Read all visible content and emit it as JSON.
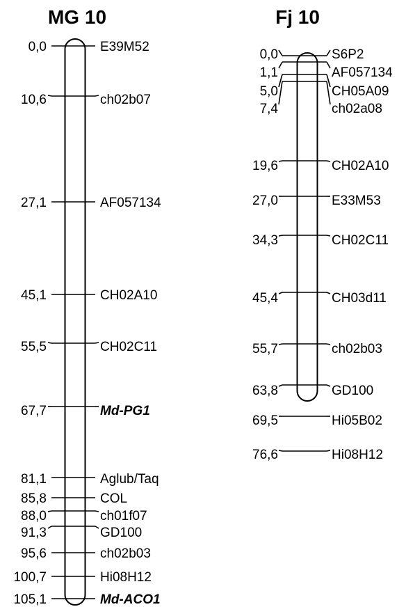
{
  "maps": [
    {
      "id": "mg10",
      "title": "MG 10",
      "markers": [
        {
          "pos": "0,0",
          "name": "E39M52"
        },
        {
          "pos": "10,6",
          "name": "ch02b07"
        },
        {
          "pos": "27,1",
          "name": "AF057134"
        },
        {
          "pos": "45,1",
          "name": "CH02A10"
        },
        {
          "pos": "55,5",
          "name": "CH02C11"
        },
        {
          "pos": "67,7",
          "name": "Md-PG1",
          "emphasis": true
        },
        {
          "pos": "81,1",
          "name": "Aglub/Taq"
        },
        {
          "pos": "85,8",
          "name": "COL"
        },
        {
          "pos": "88,0",
          "name": "ch01f07"
        },
        {
          "pos": "91,3",
          "name": "GD100"
        },
        {
          "pos": "95,6",
          "name": "ch02b03"
        },
        {
          "pos": "100,7",
          "name": "Hi08H12"
        },
        {
          "pos": "105,1",
          "name": "Md-ACO1",
          "emphasis": true
        }
      ]
    },
    {
      "id": "fj10",
      "title": "Fj 10",
      "markers": [
        {
          "pos": "0,0",
          "name": "S6P2"
        },
        {
          "pos": "1,1",
          "name": "AF057134"
        },
        {
          "pos": "5,0",
          "name": "CH05A09"
        },
        {
          "pos": "7,4",
          "name": "ch02a08"
        },
        {
          "pos": "19,6",
          "name": "CH02A10"
        },
        {
          "pos": "27,0",
          "name": "E33M53"
        },
        {
          "pos": "34,3",
          "name": "CH02C11"
        },
        {
          "pos": "45,4",
          "name": "CH03d11"
        },
        {
          "pos": "55,7",
          "name": "ch02b03"
        },
        {
          "pos": "63,8",
          "name": "GD100"
        },
        {
          "pos": "69,5",
          "name": "Hi05B02"
        },
        {
          "pos": "76,6",
          "name": "Hi08H12"
        }
      ]
    }
  ]
}
